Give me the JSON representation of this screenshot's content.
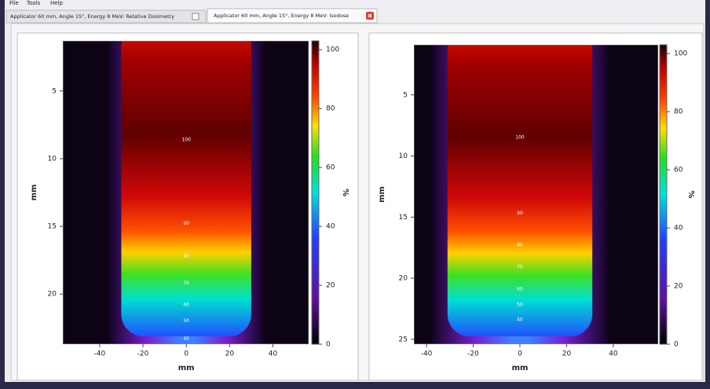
{
  "menu": [
    "File",
    "Tools",
    "Help"
  ],
  "tabs": [
    "Applicator 60 mm, Angle 15°, Energy 8 MeV: Relative Dosimetry",
    "Applicator 60 mm, Angle 15°, Energy 8 MeV: Isodose"
  ],
  "chart_data": [
    {
      "type": "heatmap",
      "xlabel": "mm",
      "ylabel": "mm",
      "colorbar_label": "%",
      "xlim": [
        -57,
        56.5
      ],
      "xticks": [
        -40,
        -20,
        0,
        20,
        40
      ],
      "ylim": [
        1.3,
        23.7
      ],
      "yticks": [
        5,
        10,
        15,
        20
      ],
      "y_inverted": true,
      "clim": [
        0,
        103
      ],
      "cticks": [
        0,
        20,
        40,
        60,
        80,
        100
      ],
      "contour_labels": [
        100,
        90,
        80,
        70,
        60,
        50,
        40
      ]
    },
    {
      "type": "heatmap",
      "xlabel": "mm",
      "ylabel": "mm",
      "colorbar_label": "%",
      "xlim": [
        -45.4,
        59.2
      ],
      "xticks": [
        -40,
        -20,
        0,
        20,
        40
      ],
      "ylim": [
        0.9,
        25.4
      ],
      "yticks": [
        5,
        10,
        15,
        20,
        25
      ],
      "y_inverted": true,
      "clim": [
        0,
        103
      ],
      "cticks": [
        0,
        20,
        40,
        60,
        80,
        100
      ],
      "contour_labels": [
        100,
        90,
        80,
        70,
        60,
        50,
        40
      ]
    }
  ]
}
